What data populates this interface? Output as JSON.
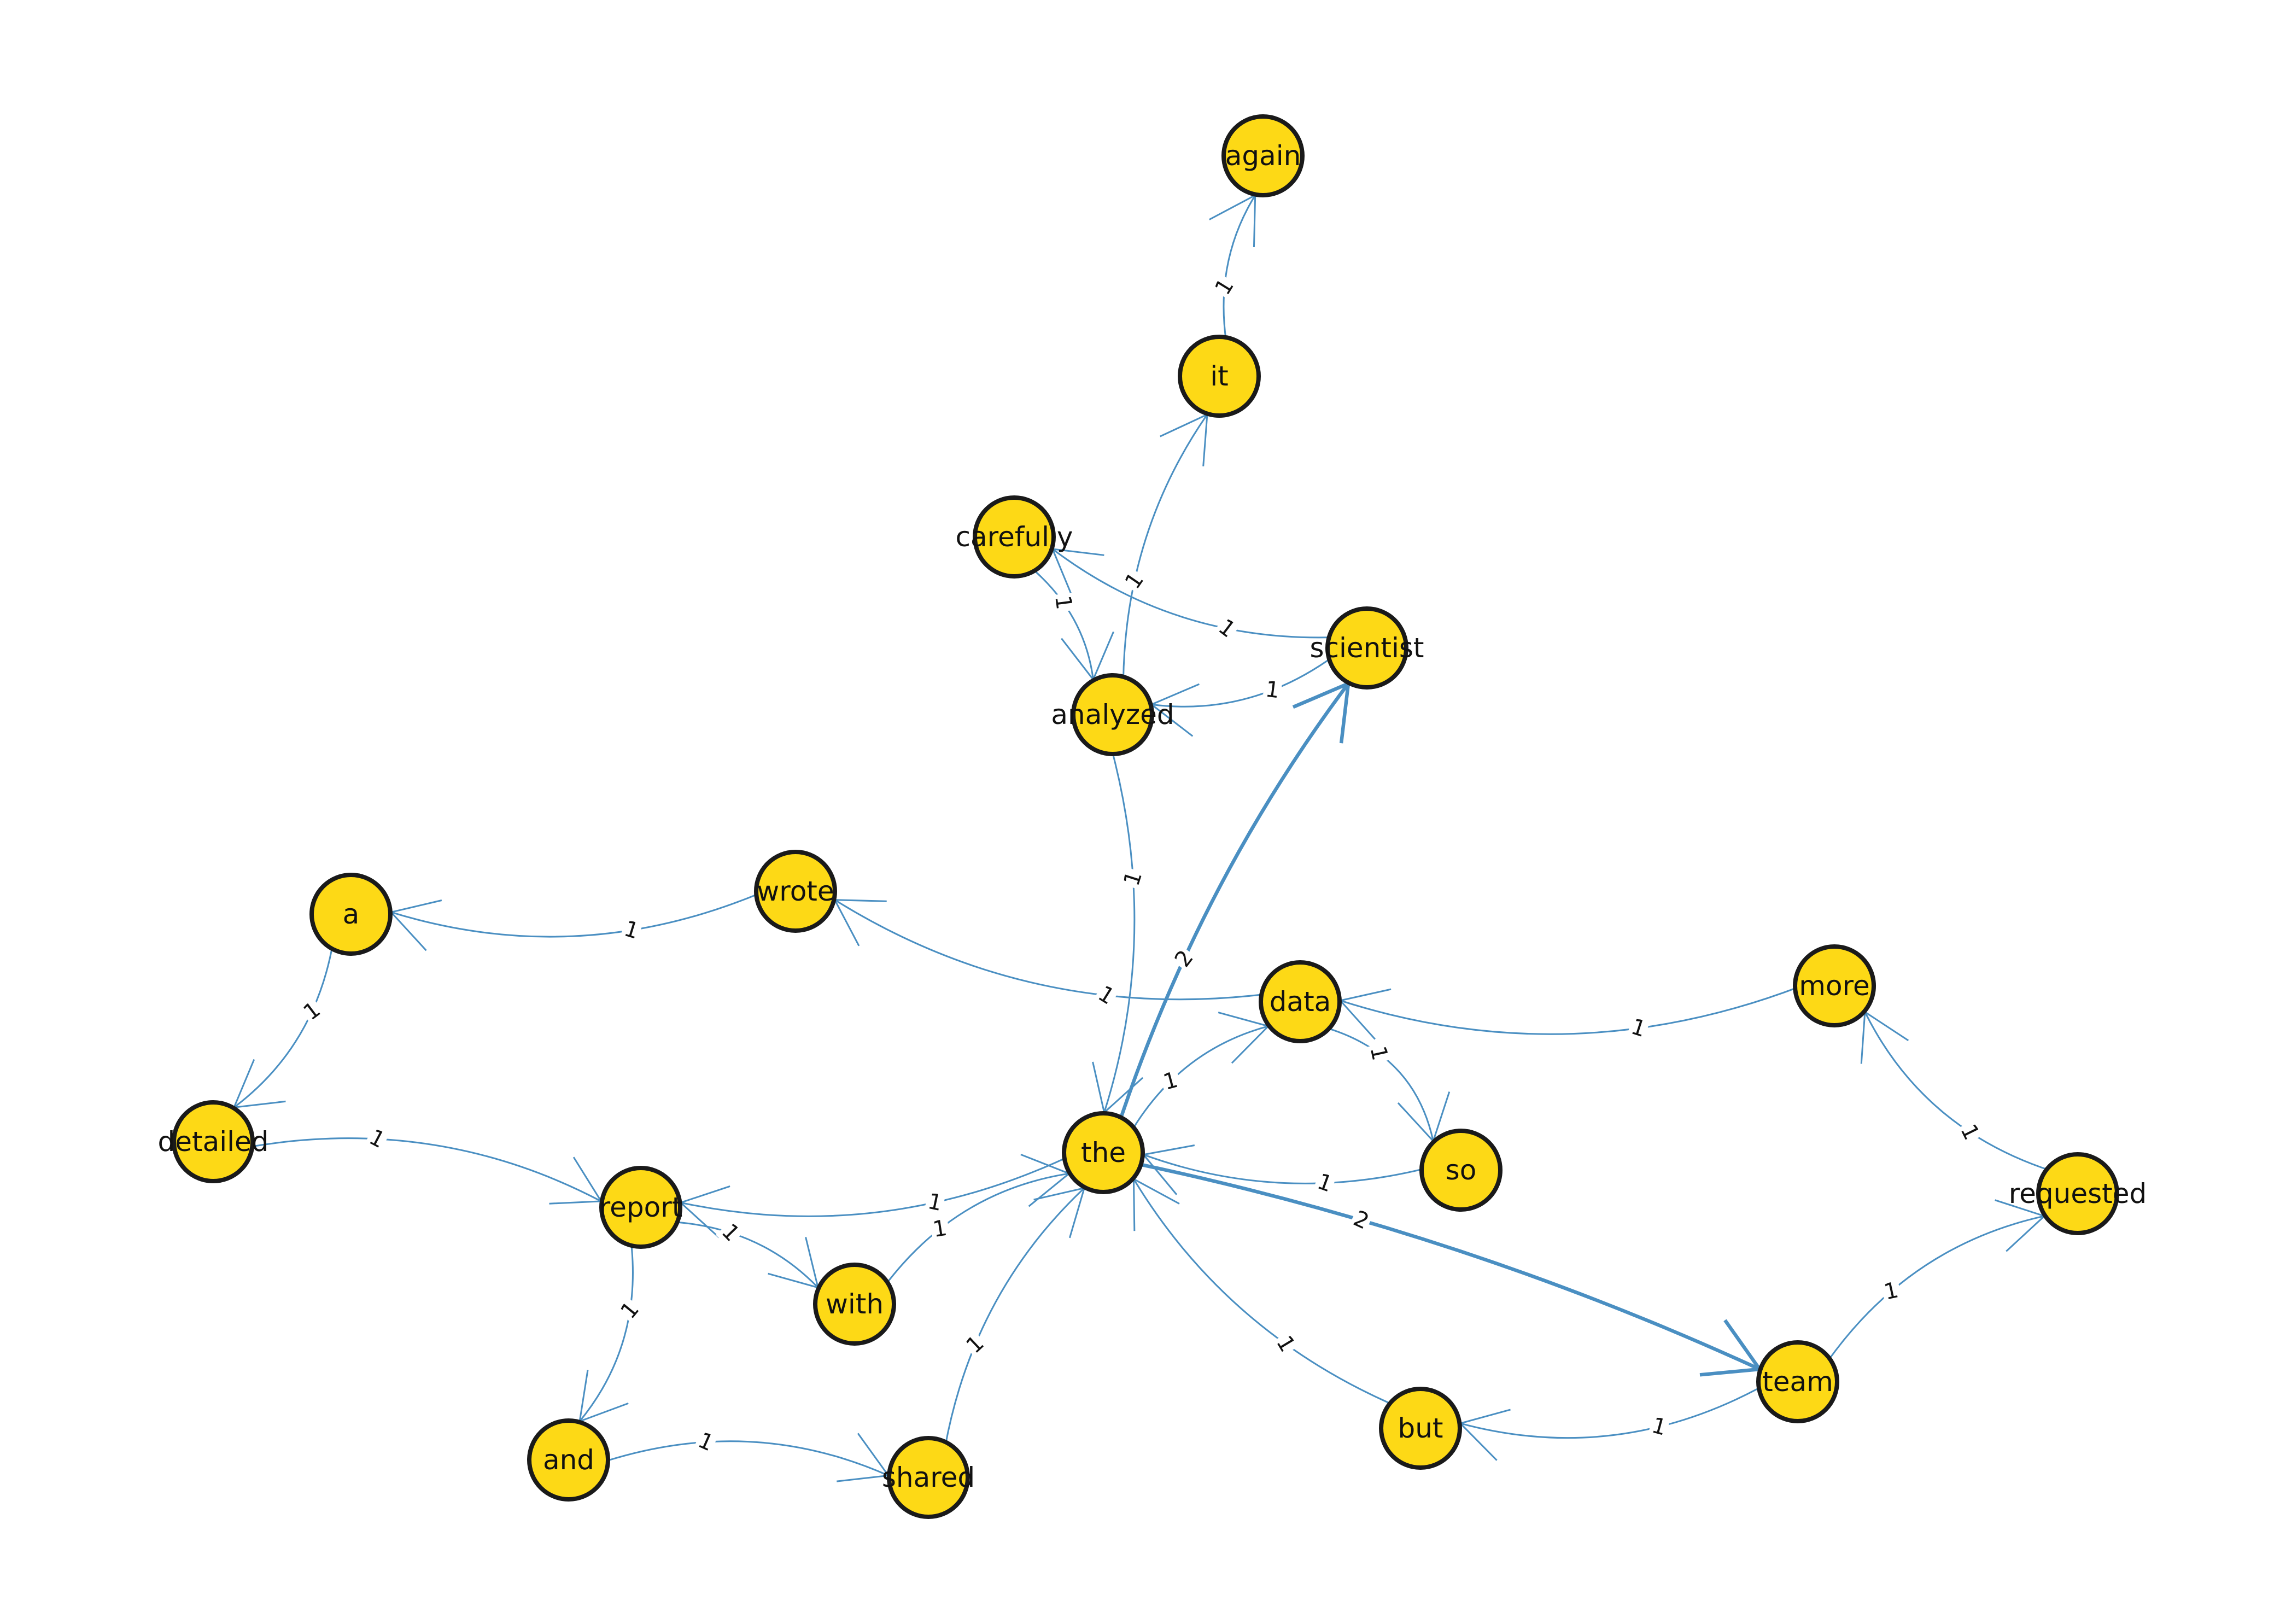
{
  "nodes": [
    {
      "id": "again",
      "label": "again"
    },
    {
      "id": "it",
      "label": "it"
    },
    {
      "id": "carefully",
      "label": "carefully"
    },
    {
      "id": "scientist",
      "label": "scientist"
    },
    {
      "id": "analyzed",
      "label": "analyzed"
    },
    {
      "id": "a",
      "label": "a"
    },
    {
      "id": "wrote",
      "label": "wrote"
    },
    {
      "id": "data",
      "label": "data"
    },
    {
      "id": "more",
      "label": "more"
    },
    {
      "id": "detailed",
      "label": "detailed"
    },
    {
      "id": "the",
      "label": "the"
    },
    {
      "id": "so",
      "label": "so"
    },
    {
      "id": "requested",
      "label": "requested"
    },
    {
      "id": "report",
      "label": "report"
    },
    {
      "id": "with",
      "label": "with"
    },
    {
      "id": "team",
      "label": "team"
    },
    {
      "id": "but",
      "label": "but"
    },
    {
      "id": "and",
      "label": "and"
    },
    {
      "id": "shared",
      "label": "shared"
    }
  ],
  "edges": [
    {
      "from": "it",
      "to": "again",
      "weight": "1"
    },
    {
      "from": "analyzed",
      "to": "it",
      "weight": "1"
    },
    {
      "from": "scientist",
      "to": "carefully",
      "weight": "1"
    },
    {
      "from": "carefully",
      "to": "analyzed",
      "weight": "1"
    },
    {
      "from": "scientist",
      "to": "analyzed",
      "weight": "1"
    },
    {
      "from": "analyzed",
      "to": "the",
      "weight": "1"
    },
    {
      "from": "the",
      "to": "scientist",
      "weight": "2"
    },
    {
      "from": "wrote",
      "to": "a",
      "weight": "1"
    },
    {
      "from": "data",
      "to": "wrote",
      "weight": "1"
    },
    {
      "from": "a",
      "to": "detailed",
      "weight": "1"
    },
    {
      "from": "detailed",
      "to": "report",
      "weight": "1"
    },
    {
      "from": "more",
      "to": "data",
      "weight": "1"
    },
    {
      "from": "requested",
      "to": "more",
      "weight": "1"
    },
    {
      "from": "the",
      "to": "data",
      "weight": "1"
    },
    {
      "from": "data",
      "to": "so",
      "weight": "1"
    },
    {
      "from": "so",
      "to": "the",
      "weight": "1"
    },
    {
      "from": "the",
      "to": "report",
      "weight": "1"
    },
    {
      "from": "report",
      "to": "with",
      "weight": "1"
    },
    {
      "from": "with",
      "to": "the",
      "weight": "1"
    },
    {
      "from": "report",
      "to": "and",
      "weight": "1"
    },
    {
      "from": "and",
      "to": "shared",
      "weight": "1"
    },
    {
      "from": "shared",
      "to": "the",
      "weight": "1"
    },
    {
      "from": "the",
      "to": "team",
      "weight": "2"
    },
    {
      "from": "team",
      "to": "requested",
      "weight": "1"
    },
    {
      "from": "but",
      "to": "the",
      "weight": "1"
    },
    {
      "from": "team",
      "to": "but",
      "weight": "1"
    }
  ]
}
